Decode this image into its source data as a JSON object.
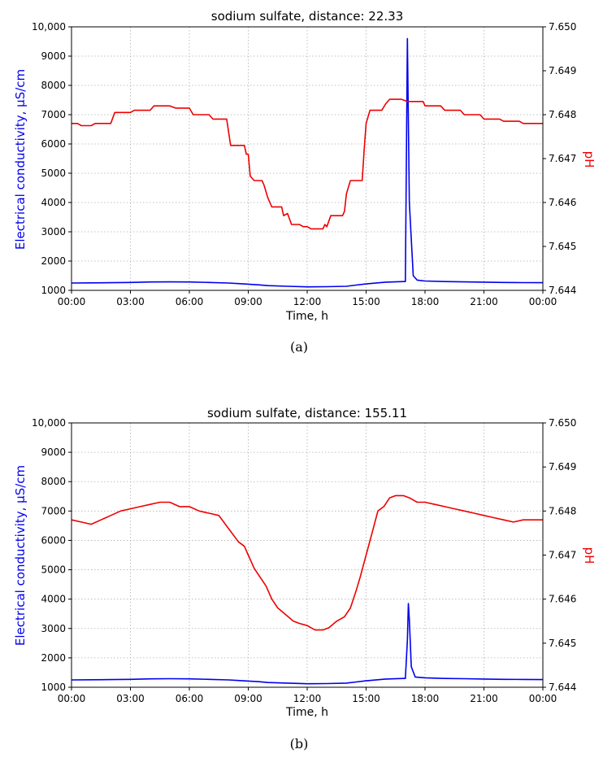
{
  "chart_data": [
    {
      "type": "line",
      "title": "sodium sulfate, distance: 22.33",
      "caption": "(a)",
      "xlabel": "Time, h",
      "ylabel_left": "Electrical conductivity, µS/cm",
      "ylabel_right": "pH",
      "x_tick_labels": [
        "00:00",
        "03:00",
        "06:00",
        "09:00",
        "12:00",
        "15:00",
        "18:00",
        "21:00",
        "00:00"
      ],
      "y_left_ticks": [
        "1000",
        "2000",
        "3000",
        "4000",
        "5000",
        "6000",
        "7000",
        "8000",
        "9000",
        "10,000"
      ],
      "y_right_ticks": [
        "7.644",
        "7.645",
        "7.646",
        "7.647",
        "7.648",
        "7.649",
        "7.650"
      ],
      "xlim": [
        0,
        24
      ],
      "ylim_left": [
        1000,
        10000
      ],
      "ylim_right": [
        7.644,
        7.65
      ],
      "grid": true,
      "series": [
        {
          "axis": "left",
          "color": "#0000ee",
          "x": [
            0,
            1,
            2,
            3,
            4,
            5,
            6,
            7,
            8,
            8.5,
            9,
            9.5,
            10,
            11,
            12,
            13,
            14,
            14.5,
            15,
            16,
            16.9,
            17.0,
            17.1,
            17.2,
            17.4,
            17.6,
            18,
            19,
            20,
            21,
            22,
            23,
            24
          ],
          "y": [
            1250,
            1255,
            1260,
            1270,
            1285,
            1290,
            1285,
            1270,
            1250,
            1230,
            1210,
            1190,
            1160,
            1140,
            1120,
            1125,
            1140,
            1180,
            1220,
            1280,
            1300,
            1300,
            9600,
            4000,
            1500,
            1350,
            1320,
            1300,
            1290,
            1280,
            1270,
            1265,
            1260
          ]
        },
        {
          "axis": "right",
          "color": "#ee0000",
          "x": [
            0,
            0.3,
            0.5,
            1.0,
            1.2,
            2.0,
            2.2,
            3.0,
            3.2,
            4.0,
            4.2,
            5.0,
            5.3,
            6.0,
            6.2,
            7.0,
            7.2,
            7.9,
            8.1,
            8.8,
            8.9,
            9.0,
            9.1,
            9.3,
            9.7,
            9.8,
            10.0,
            10.2,
            10.7,
            10.8,
            11.0,
            11.2,
            11.6,
            11.8,
            12.0,
            12.2,
            12.8,
            12.9,
            13.0,
            13.2,
            13.8,
            13.9,
            14.0,
            14.2,
            14.8,
            14.9,
            15.0,
            15.2,
            15.8,
            16.0,
            16.2,
            16.8,
            17.1,
            17.2,
            17.9,
            18.0,
            18.8,
            19.0,
            19.8,
            20.0,
            20.8,
            21.0,
            21.8,
            22.0,
            22.8,
            23.0,
            24.0
          ],
          "y": [
            7.6478,
            7.6478,
            7.64775,
            7.64775,
            7.6478,
            7.6478,
            7.64805,
            7.64805,
            7.6481,
            7.6481,
            7.6482,
            7.6482,
            7.64815,
            7.64815,
            7.648,
            7.648,
            7.6479,
            7.6479,
            7.6473,
            7.6473,
            7.6471,
            7.6471,
            7.6466,
            7.6465,
            7.6465,
            7.6464,
            7.6461,
            7.6459,
            7.6459,
            7.6457,
            7.64575,
            7.6455,
            7.6455,
            7.64545,
            7.64545,
            7.6454,
            7.6454,
            7.6455,
            7.64545,
            7.6457,
            7.6457,
            7.6458,
            7.6462,
            7.6465,
            7.6465,
            7.6472,
            7.6478,
            7.6481,
            7.6481,
            7.64825,
            7.64835,
            7.64835,
            7.6483,
            7.6483,
            7.6483,
            7.6482,
            7.6482,
            7.6481,
            7.6481,
            7.648,
            7.648,
            7.6479,
            7.6479,
            7.64785,
            7.64785,
            7.6478,
            7.6478
          ]
        }
      ]
    },
    {
      "type": "line",
      "title": "sodium sulfate, distance: 155.11",
      "caption": "(b)",
      "xlabel": "Time, h",
      "ylabel_left": "Electrical conductivity, µS/cm",
      "ylabel_right": "pH",
      "x_tick_labels": [
        "00:00",
        "03:00",
        "06:00",
        "09:00",
        "12:00",
        "15:00",
        "18:00",
        "21:00",
        "00:00"
      ],
      "y_left_ticks": [
        "1000",
        "2000",
        "3000",
        "4000",
        "5000",
        "6000",
        "7000",
        "8000",
        "9000",
        "10,000"
      ],
      "y_right_ticks": [
        "7.644",
        "7.645",
        "7.646",
        "7.647",
        "7.648",
        "7.649",
        "7.650"
      ],
      "xlim": [
        0,
        24
      ],
      "ylim_left": [
        1000,
        10000
      ],
      "ylim_right": [
        7.644,
        7.65
      ],
      "grid": true,
      "series": [
        {
          "axis": "left",
          "color": "#0000ee",
          "x": [
            0,
            1,
            2,
            3,
            4,
            5,
            6,
            7,
            8,
            8.5,
            9,
            9.5,
            10,
            11,
            12,
            13,
            14,
            14.5,
            15,
            16,
            16.9,
            17.0,
            17.1,
            17.15,
            17.2,
            17.3,
            17.5,
            18,
            19,
            20,
            21,
            22,
            23,
            24
          ],
          "y": [
            1250,
            1255,
            1260,
            1270,
            1285,
            1290,
            1285,
            1270,
            1250,
            1230,
            1210,
            1190,
            1160,
            1140,
            1120,
            1125,
            1140,
            1180,
            1220,
            1280,
            1300,
            1300,
            2600,
            3850,
            3300,
            1700,
            1350,
            1320,
            1300,
            1290,
            1280,
            1270,
            1265,
            1260
          ]
        },
        {
          "axis": "right",
          "color": "#ee0000",
          "x": [
            0,
            0.5,
            1.0,
            1.5,
            2.0,
            2.5,
            3.0,
            3.5,
            4.0,
            4.5,
            5.0,
            5.5,
            6.0,
            6.5,
            7.0,
            7.5,
            8.0,
            8.5,
            8.8,
            9.0,
            9.3,
            9.6,
            9.9,
            10.2,
            10.5,
            10.9,
            11.3,
            11.6,
            12.0,
            12.4,
            12.8,
            13.1,
            13.5,
            13.9,
            14.2,
            14.5,
            14.7,
            15.0,
            15.3,
            15.6,
            15.9,
            16.2,
            16.5,
            16.9,
            17.2,
            17.6,
            18.0,
            18.5,
            19.0,
            19.5,
            20.0,
            20.5,
            21.0,
            21.5,
            22.0,
            22.5,
            23.0,
            24.0
          ],
          "y": [
            7.6478,
            7.64775,
            7.6477,
            7.6478,
            7.6479,
            7.648,
            7.64805,
            7.6481,
            7.64815,
            7.6482,
            7.6482,
            7.6481,
            7.6481,
            7.648,
            7.64795,
            7.6479,
            7.6476,
            7.6473,
            7.6472,
            7.647,
            7.6467,
            7.6465,
            7.6463,
            7.646,
            7.6458,
            7.64565,
            7.6455,
            7.64545,
            7.6454,
            7.6453,
            7.6453,
            7.64535,
            7.6455,
            7.6456,
            7.6458,
            7.6462,
            7.6465,
            7.647,
            7.6475,
            7.648,
            7.6481,
            7.6483,
            7.64835,
            7.64835,
            7.6483,
            7.6482,
            7.6482,
            7.64815,
            7.6481,
            7.64805,
            7.648,
            7.64795,
            7.6479,
            7.64785,
            7.6478,
            7.64775,
            7.6478,
            7.6478
          ]
        }
      ]
    }
  ]
}
